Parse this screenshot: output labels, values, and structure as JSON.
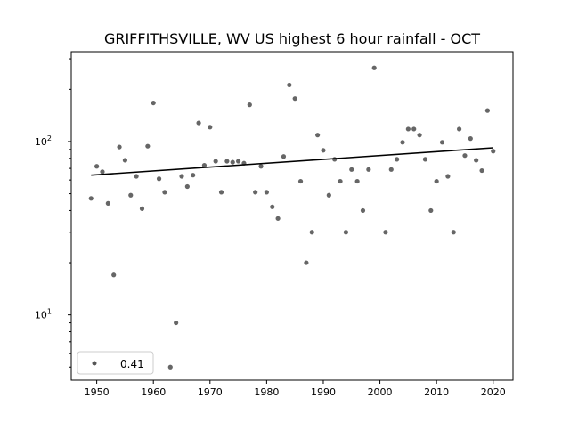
{
  "chart_data": {
    "type": "scatter",
    "title": "GRIFFITHSVILLE, WV US highest 6 hour rainfall - OCT",
    "xlabel": "",
    "ylabel": "",
    "xlim": [
      1945.5,
      2023.5
    ],
    "ylim": [
      4.2,
      330
    ],
    "yscale": "log",
    "xticks": [
      1950,
      1960,
      1970,
      1980,
      1990,
      2000,
      2010,
      2020
    ],
    "yticks": [
      {
        "value": 10,
        "base": "10",
        "exp": "1"
      },
      {
        "value": 100,
        "base": "10",
        "exp": "2"
      }
    ],
    "grid": false,
    "legend": {
      "placement": "lower-left",
      "entries": [
        "0.41"
      ]
    },
    "series": [
      {
        "name": "0.41",
        "color": "#555555",
        "x": [
          1949,
          1950,
          1951,
          1952,
          1953,
          1954,
          1955,
          1956,
          1957,
          1958,
          1959,
          1960,
          1961,
          1962,
          1963,
          1964,
          1965,
          1966,
          1967,
          1968,
          1969,
          1970,
          1971,
          1972,
          1973,
          1974,
          1975,
          1976,
          1977,
          1978,
          1979,
          1980,
          1981,
          1982,
          1983,
          1984,
          1985,
          1986,
          1987,
          1988,
          1989,
          1990,
          1991,
          1992,
          1993,
          1994,
          1995,
          1996,
          1997,
          1998,
          1999,
          2001,
          2002,
          2003,
          2004,
          2005,
          2006,
          2007,
          2008,
          2009,
          2010,
          2011,
          2012,
          2013,
          2014,
          2015,
          2016,
          2017,
          2018,
          2019,
          2020
        ],
        "y": [
          47,
          72,
          67,
          44,
          17,
          93,
          78,
          49,
          63,
          41,
          94,
          167,
          61,
          51,
          5,
          9,
          63,
          55,
          64,
          128,
          73,
          121,
          77,
          51,
          77,
          76,
          77,
          75,
          163,
          51,
          72,
          51,
          42,
          36,
          82,
          212,
          177,
          59,
          20,
          30,
          109,
          89,
          49,
          79,
          59,
          30,
          69,
          59,
          40,
          69,
          266,
          30,
          69,
          79,
          99,
          118,
          118,
          109,
          79,
          40,
          59,
          99,
          63,
          30,
          118,
          83,
          104,
          78,
          68,
          151,
          88
        ]
      }
    ],
    "trend": {
      "x": [
        1949,
        2020
      ],
      "y": [
        64,
        92
      ],
      "color": "#000000"
    }
  }
}
